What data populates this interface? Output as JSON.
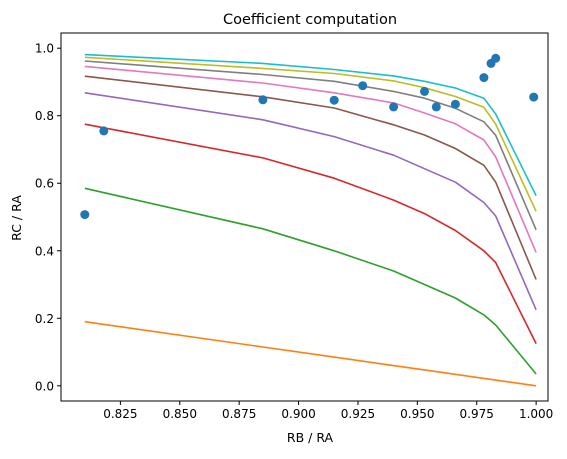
{
  "chart_data": {
    "type": "line",
    "title": "Coefficient computation",
    "xlabel": "RB / RA",
    "ylabel": "RC / RA",
    "xlim": [
      0.8,
      1.005
    ],
    "ylim": [
      -0.045,
      1.045
    ],
    "grid": false,
    "xticks": [
      0.825,
      0.85,
      0.875,
      0.9,
      0.925,
      0.95,
      0.975,
      1.0
    ],
    "xtick_labels": [
      "0.825",
      "0.850",
      "0.875",
      "0.900",
      "0.925",
      "0.950",
      "0.975",
      "1.000"
    ],
    "yticks": [
      0.0,
      0.2,
      0.4,
      0.6,
      0.8,
      1.0
    ],
    "ytick_labels": [
      "0.0",
      "0.2",
      "0.4",
      "0.6",
      "0.8",
      "1.0"
    ],
    "scatter": {
      "color": "#1f77b4",
      "points": [
        [
          0.81,
          0.507
        ],
        [
          0.818,
          0.755
        ],
        [
          0.885,
          0.847
        ],
        [
          0.915,
          0.846
        ],
        [
          0.927,
          0.889
        ],
        [
          0.94,
          0.826
        ],
        [
          0.953,
          0.872
        ],
        [
          0.958,
          0.826
        ],
        [
          0.966,
          0.834
        ],
        [
          0.978,
          0.913
        ],
        [
          0.981,
          0.955
        ],
        [
          0.983,
          0.97
        ],
        [
          0.999,
          0.855
        ]
      ]
    },
    "x": [
      0.81,
      0.885,
      0.915,
      0.94,
      0.953,
      0.966,
      0.978,
      0.983,
      1.0
    ],
    "series": [
      {
        "color": "#ff7f0e",
        "values": [
          0.19,
          0.115,
          0.085,
          0.06,
          0.047,
          0.034,
          0.022,
          0.017,
          0.0
        ]
      },
      {
        "color": "#2ca02c",
        "values": [
          0.585,
          0.465,
          0.4,
          0.34,
          0.3,
          0.26,
          0.21,
          0.18,
          0.035
        ]
      },
      {
        "color": "#d62728",
        "values": [
          0.775,
          0.675,
          0.615,
          0.55,
          0.51,
          0.46,
          0.4,
          0.365,
          0.125
        ]
      },
      {
        "color": "#9467bd",
        "values": [
          0.868,
          0.788,
          0.738,
          0.683,
          0.643,
          0.603,
          0.543,
          0.503,
          0.225
        ]
      },
      {
        "color": "#8c564b",
        "values": [
          0.917,
          0.856,
          0.823,
          0.773,
          0.743,
          0.703,
          0.653,
          0.603,
          0.315
        ]
      },
      {
        "color": "#e377c2",
        "values": [
          0.946,
          0.897,
          0.868,
          0.838,
          0.808,
          0.776,
          0.728,
          0.678,
          0.395
        ]
      },
      {
        "color": "#7f7f7f",
        "values": [
          0.962,
          0.922,
          0.902,
          0.872,
          0.852,
          0.822,
          0.782,
          0.742,
          0.462
        ]
      },
      {
        "color": "#bcbd22",
        "values": [
          0.973,
          0.94,
          0.925,
          0.903,
          0.883,
          0.857,
          0.825,
          0.775,
          0.517
        ]
      },
      {
        "color": "#17becf",
        "values": [
          0.981,
          0.955,
          0.937,
          0.918,
          0.902,
          0.882,
          0.852,
          0.805,
          0.563
        ]
      }
    ]
  }
}
